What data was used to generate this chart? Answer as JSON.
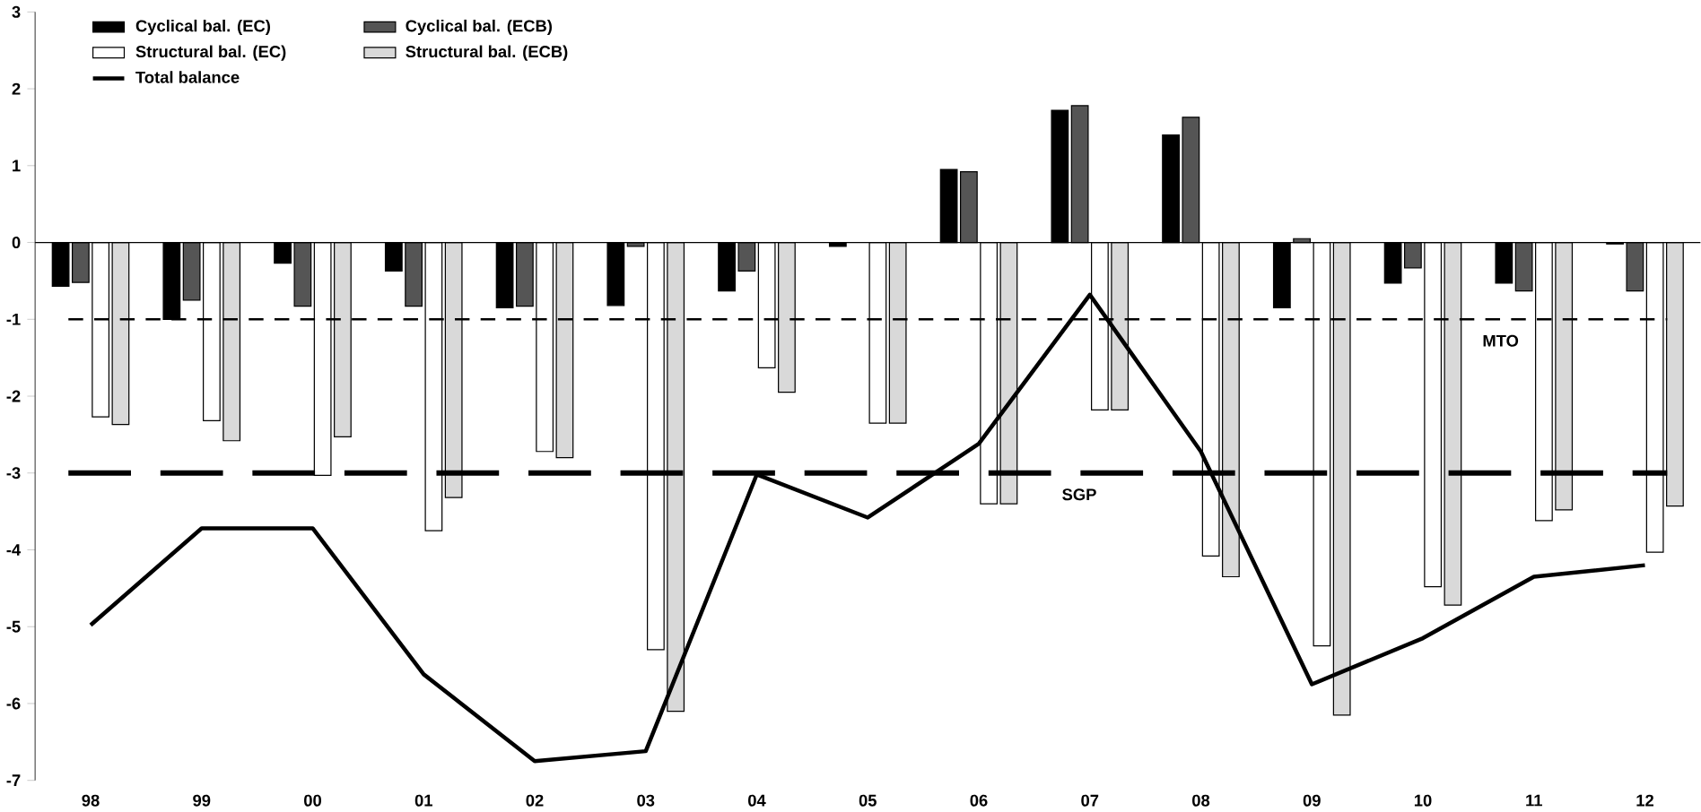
{
  "chart_data": {
    "type": "bar",
    "categories": [
      "98",
      "99",
      "00",
      "01",
      "02",
      "03",
      "04",
      "05",
      "06",
      "07",
      "08",
      "09",
      "10",
      "11",
      "12"
    ],
    "series": [
      {
        "name": "Cyclical bal. (EC)",
        "color": "#000000",
        "values": [
          -0.57,
          -1.0,
          -0.27,
          -0.37,
          -0.85,
          -0.82,
          -0.63,
          -0.05,
          0.95,
          1.72,
          1.4,
          -0.85,
          -0.53,
          -0.53,
          -0.02
        ]
      },
      {
        "name": "Cyclical bal. (ECB)",
        "color": "#555555",
        "values": [
          -0.52,
          -0.75,
          -0.83,
          -0.83,
          -0.83,
          -0.05,
          -0.37,
          null,
          0.92,
          1.78,
          1.63,
          0.05,
          -0.33,
          -0.63,
          -0.63
        ]
      },
      {
        "name": "Structural bal. (EC)",
        "color": "#ffffff",
        "values": [
          -2.27,
          -2.32,
          -3.03,
          -3.75,
          -2.72,
          -5.3,
          -1.63,
          -2.35,
          -3.4,
          -2.18,
          -4.08,
          -5.25,
          -4.48,
          -3.62,
          -4.03
        ]
      },
      {
        "name": "Structural bal. (ECB)",
        "color": "#d9d9d9",
        "values": [
          -2.37,
          -2.58,
          -2.53,
          -3.32,
          -2.8,
          -6.1,
          -1.95,
          -2.35,
          -3.4,
          -2.18,
          -4.35,
          -6.15,
          -4.72,
          -3.48,
          -3.43
        ]
      },
      {
        "name": "Total balance",
        "type": "line",
        "color": "#000000",
        "values": [
          -4.98,
          -3.72,
          -3.72,
          -5.62,
          -6.75,
          -6.62,
          -3.02,
          -3.58,
          -2.62,
          -0.68,
          -2.72,
          -5.75,
          -5.15,
          -4.35,
          -4.2
        ]
      }
    ],
    "ylim": [
      -7,
      3
    ],
    "yticks": [
      -7,
      -6,
      -5,
      -4,
      -3,
      -2,
      -1,
      0,
      1,
      2,
      3
    ],
    "ref_lines": [
      {
        "axis": "y",
        "value": -3,
        "label": "SGP",
        "color": "#000000",
        "line_style": "dashed"
      },
      {
        "axis": "y",
        "value": -1,
        "label": "MTO",
        "color": "#000000",
        "line_style": "dashed"
      }
    ],
    "legend": "top left",
    "grid": false,
    "marker": "none"
  }
}
